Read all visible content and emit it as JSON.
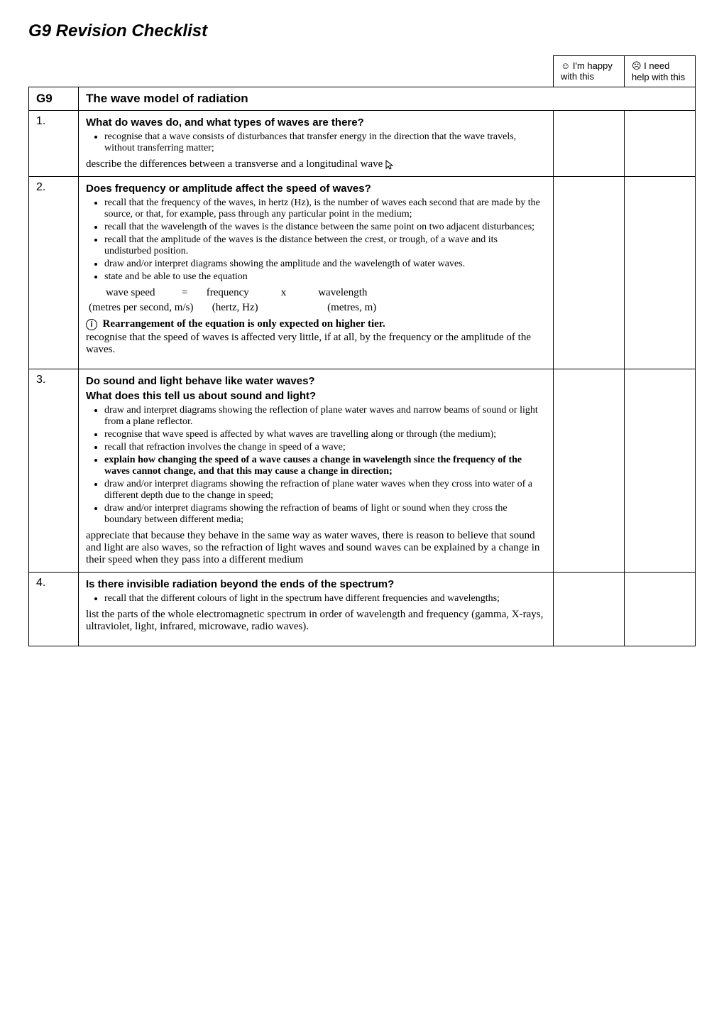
{
  "page_title": "G9 Revision Checklist",
  "header_row": {
    "happy": "☺ I'm happy with this",
    "need": "☹ I need help with this"
  },
  "section": {
    "code": "G9",
    "title": "The wave model of radiation"
  },
  "rows": [
    {
      "num": "1.",
      "q1": "What do waves do, and what types of waves are there?",
      "bullets1": [
        "recognise that a wave consists of disturbances that transfer energy in the direction that the wave travels, without transferring matter;"
      ],
      "trail1": "describe the differences between a transverse and a longitudinal wave"
    },
    {
      "num": "2.",
      "q1": "Does frequency or amplitude affect the speed of waves?",
      "bullets1": [
        "recall that the frequency of the waves, in hertz  (Hz), is the number of waves each second that are made by the source, or that, for example,  pass through any particular point in the medium;",
        "recall that the wavelength of the waves is the distance between the same point on two adjacent disturbances;",
        "recall that the amplitude of the waves is the distance between the crest, or trough, of a wave and its undisturbed position.",
        "draw and/or interpret diagrams showing the amplitude and the wavelength of water waves.",
        "state and be able to use the equation"
      ],
      "eq1": "wave speed          =       frequency            x            wavelength",
      "eq2": "(metres per second, m/s)       (hertz, Hz)                          (metres, m)",
      "info": "Rearrangement of the equation is only expected on higher tier.",
      "trail1": "recognise that the speed of waves is affected very little, if at all, by the frequency or the amplitude of the waves."
    },
    {
      "num": "3.",
      "q1": "Do sound and light behave like water waves?",
      "q2": "What does this tell us about sound and light?",
      "bullets1": [
        "draw and interpret diagrams showing the reflection of plane water waves and narrow beams of sound or light from a plane reflector.",
        "recognise that wave speed is affected by what waves are travelling along or through (the medium);",
        "recall that refraction involves the change in speed of a wave;",
        "<b>explain how changing the speed of a wave causes a change in wavelength since the frequency of the waves cannot change, and that this may cause a change in direction;</b>",
        "draw and/or interpret diagrams showing the refraction of plane water waves when they cross into water of a different depth due to the change in speed;",
        "draw and/or interpret diagrams showing the refraction of beams of light or sound when they cross the boundary between different media;"
      ],
      "trail1": "appreciate that because they behave in the same way as water waves, there is reason to believe that sound and light are also waves, so the refraction of light waves and sound waves can be explained by a change in their speed when they pass into a different medium"
    },
    {
      "num": "4.",
      "q1": "Is there invisible radiation beyond the ends of the spectrum?",
      "bullets1": [
        "recall that the different colours of light in the spectrum have different frequencies and wavelengths;"
      ],
      "trail1": "list the parts of the whole electromagnetic spectrum in order of wavelength and frequency (gamma, X-rays, ultraviolet, light, infrared, microwave, radio waves)."
    }
  ]
}
